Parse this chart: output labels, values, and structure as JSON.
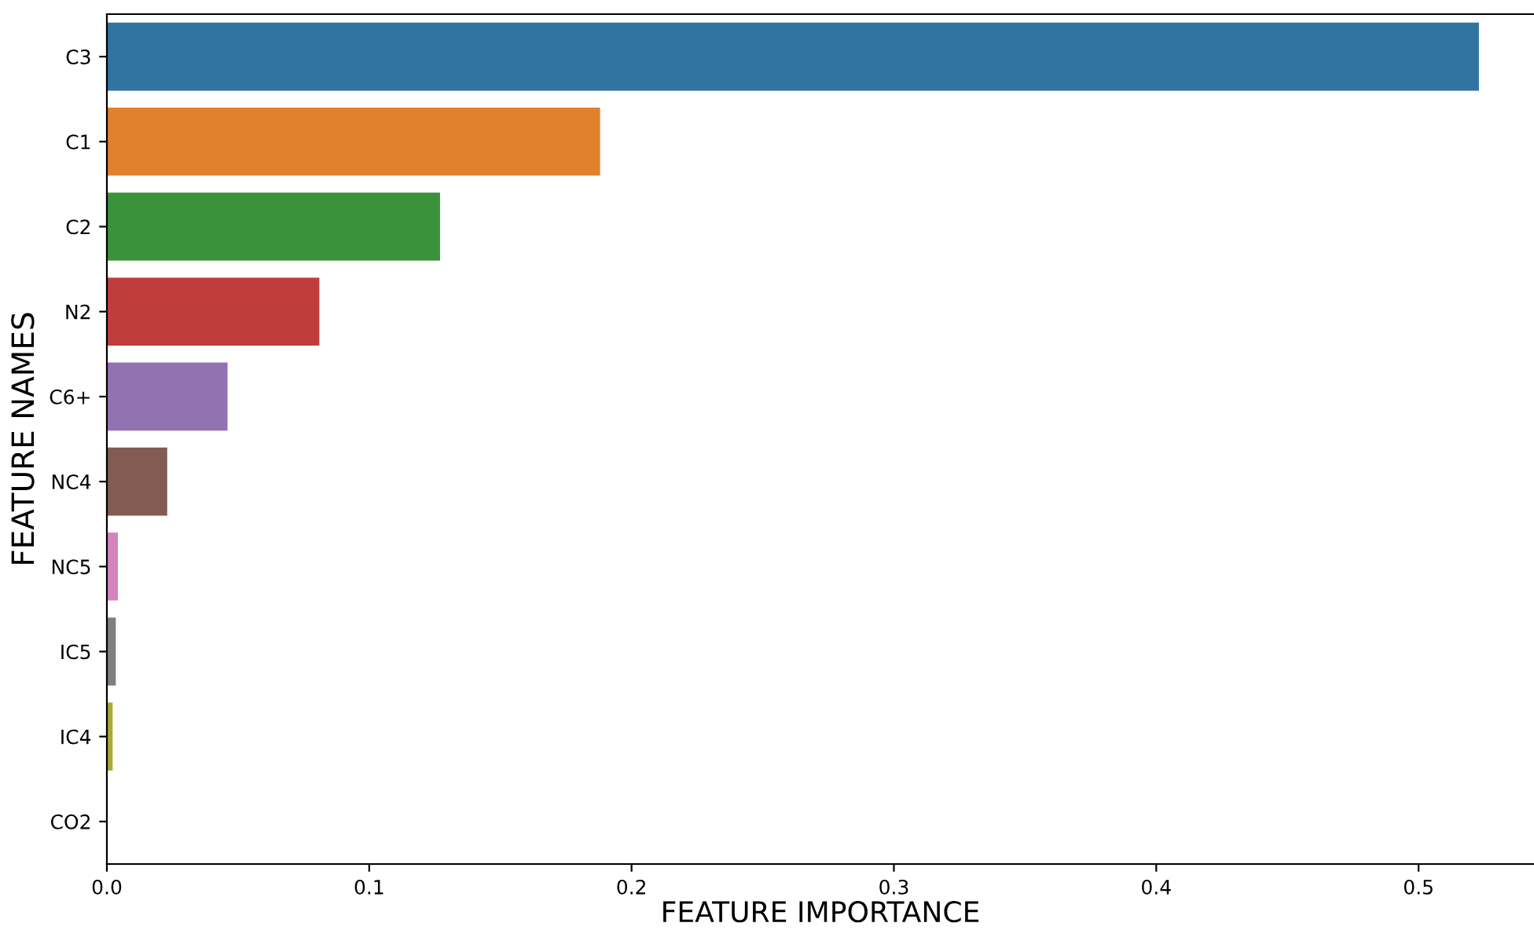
{
  "chart_data": {
    "type": "bar",
    "orientation": "horizontal",
    "xlabel": "FEATURE IMPORTANCE",
    "ylabel": "FEATURE NAMES",
    "categories": [
      "C3",
      "C1",
      "C2",
      "N2",
      "C6+",
      "NC4",
      "NC5",
      "IC5",
      "IC4",
      "CO2"
    ],
    "values": [
      0.523,
      0.188,
      0.127,
      0.081,
      0.046,
      0.023,
      0.0042,
      0.0034,
      0.0022,
      null
    ],
    "colors": [
      "#3274a1",
      "#e1812c",
      "#3a923a",
      "#c03d3e",
      "#9372b2",
      "#845b53",
      "#d684bd",
      "#7f7f7f",
      "#a9aa35",
      "#2e9ab1"
    ],
    "xlim": [
      0,
      0.544
    ],
    "xticks": [
      {
        "value": 0,
        "label": "0.0"
      },
      0.1,
      0.2,
      0.3,
      0.4,
      0.5
    ],
    "grid": false,
    "legend": false
  }
}
